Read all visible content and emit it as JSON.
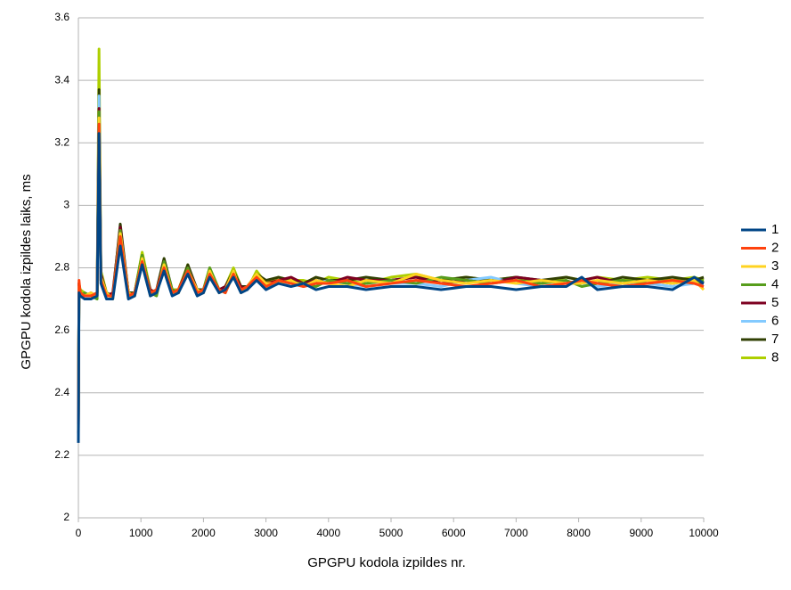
{
  "chart_data": {
    "type": "line",
    "xlabel": "GPGPU kodola izpildes nr.",
    "ylabel": "GPGPU kodola izpildes laiks, ms",
    "x": [
      0,
      10,
      30,
      100,
      200,
      300,
      330,
      360,
      450,
      550,
      670,
      800,
      900,
      1020,
      1150,
      1250,
      1370,
      1500,
      1600,
      1750,
      1900,
      2000,
      2100,
      2250,
      2350,
      2480,
      2600,
      2700,
      2850,
      3000,
      3200,
      3400,
      3600,
      3800,
      4000,
      4300,
      4600,
      5000,
      5400,
      5800,
      6200,
      6600,
      7000,
      7400,
      7800,
      8050,
      8300,
      8700,
      9100,
      9500,
      9850,
      10000
    ],
    "series": [
      {
        "name": "1",
        "color": "#004586",
        "values": [
          2.24,
          2.72,
          2.71,
          2.7,
          2.7,
          2.71,
          3.23,
          2.75,
          2.7,
          2.7,
          2.87,
          2.7,
          2.71,
          2.81,
          2.71,
          2.72,
          2.79,
          2.71,
          2.72,
          2.78,
          2.71,
          2.72,
          2.77,
          2.72,
          2.73,
          2.77,
          2.72,
          2.73,
          2.76,
          2.73,
          2.75,
          2.74,
          2.75,
          2.73,
          2.74,
          2.74,
          2.73,
          2.74,
          2.74,
          2.73,
          2.74,
          2.74,
          2.73,
          2.74,
          2.74,
          2.77,
          2.73,
          2.74,
          2.74,
          2.73,
          2.77,
          2.75
        ]
      },
      {
        "name": "2",
        "color": "#ff420e",
        "values": [
          2.3,
          2.76,
          2.72,
          2.71,
          2.71,
          2.72,
          3.26,
          2.76,
          2.71,
          2.71,
          2.9,
          2.71,
          2.72,
          2.82,
          2.72,
          2.73,
          2.8,
          2.72,
          2.73,
          2.79,
          2.72,
          2.73,
          2.78,
          2.73,
          2.72,
          2.78,
          2.73,
          2.74,
          2.77,
          2.74,
          2.76,
          2.75,
          2.74,
          2.75,
          2.75,
          2.76,
          2.74,
          2.75,
          2.76,
          2.75,
          2.74,
          2.75,
          2.76,
          2.74,
          2.75,
          2.76,
          2.75,
          2.74,
          2.75,
          2.76,
          2.75,
          2.74
        ]
      },
      {
        "name": "3",
        "color": "#ffd320",
        "values": [
          2.28,
          2.74,
          2.72,
          2.71,
          2.72,
          2.71,
          3.28,
          2.77,
          2.72,
          2.7,
          2.91,
          2.72,
          2.71,
          2.83,
          2.71,
          2.72,
          2.81,
          2.72,
          2.72,
          2.79,
          2.73,
          2.72,
          2.79,
          2.72,
          2.73,
          2.79,
          2.72,
          2.74,
          2.78,
          2.75,
          2.75,
          2.76,
          2.74,
          2.76,
          2.75,
          2.74,
          2.76,
          2.75,
          2.78,
          2.76,
          2.75,
          2.76,
          2.75,
          2.76,
          2.75,
          2.75,
          2.76,
          2.75,
          2.76,
          2.75,
          2.76,
          2.73
        ]
      },
      {
        "name": "4",
        "color": "#579d1c",
        "values": [
          2.33,
          2.73,
          2.71,
          2.72,
          2.71,
          2.7,
          3.3,
          2.76,
          2.71,
          2.71,
          2.92,
          2.71,
          2.72,
          2.84,
          2.72,
          2.71,
          2.82,
          2.73,
          2.72,
          2.8,
          2.72,
          2.73,
          2.8,
          2.73,
          2.72,
          2.78,
          2.73,
          2.73,
          2.78,
          2.74,
          2.76,
          2.75,
          2.75,
          2.74,
          2.76,
          2.75,
          2.75,
          2.76,
          2.75,
          2.77,
          2.76,
          2.75,
          2.76,
          2.75,
          2.76,
          2.74,
          2.75,
          2.76,
          2.75,
          2.76,
          2.75,
          2.76
        ]
      },
      {
        "name": "5",
        "color": "#7e0021",
        "values": [
          2.27,
          2.75,
          2.72,
          2.71,
          2.72,
          2.71,
          3.31,
          2.78,
          2.71,
          2.72,
          2.93,
          2.72,
          2.71,
          2.83,
          2.73,
          2.72,
          2.82,
          2.72,
          2.73,
          2.8,
          2.73,
          2.72,
          2.79,
          2.73,
          2.74,
          2.78,
          2.74,
          2.73,
          2.78,
          2.75,
          2.76,
          2.77,
          2.75,
          2.76,
          2.75,
          2.77,
          2.76,
          2.76,
          2.77,
          2.75,
          2.76,
          2.75,
          2.77,
          2.76,
          2.75,
          2.76,
          2.77,
          2.75,
          2.76,
          2.75,
          2.76,
          2.75
        ]
      },
      {
        "name": "6",
        "color": "#83caff",
        "values": [
          2.26,
          2.74,
          2.71,
          2.71,
          2.7,
          2.71,
          3.35,
          2.77,
          2.71,
          2.71,
          2.91,
          2.71,
          2.72,
          2.82,
          2.72,
          2.72,
          2.81,
          2.72,
          2.72,
          2.79,
          2.72,
          2.73,
          2.78,
          2.73,
          2.73,
          2.78,
          2.73,
          2.74,
          2.77,
          2.74,
          2.75,
          2.75,
          2.74,
          2.75,
          2.76,
          2.75,
          2.74,
          2.75,
          2.75,
          2.74,
          2.76,
          2.77,
          2.75,
          2.74,
          2.75,
          2.75,
          2.74,
          2.75,
          2.75,
          2.74,
          2.75,
          2.75
        ]
      },
      {
        "name": "7",
        "color": "#314004",
        "values": [
          2.29,
          2.75,
          2.72,
          2.71,
          2.71,
          2.72,
          3.37,
          2.78,
          2.72,
          2.71,
          2.94,
          2.72,
          2.72,
          2.84,
          2.72,
          2.73,
          2.83,
          2.73,
          2.72,
          2.81,
          2.73,
          2.73,
          2.79,
          2.73,
          2.74,
          2.79,
          2.74,
          2.74,
          2.78,
          2.76,
          2.77,
          2.76,
          2.75,
          2.77,
          2.76,
          2.76,
          2.77,
          2.76,
          2.77,
          2.76,
          2.77,
          2.76,
          2.77,
          2.76,
          2.77,
          2.76,
          2.75,
          2.77,
          2.76,
          2.77,
          2.76,
          2.77
        ]
      },
      {
        "name": "8",
        "color": "#aecf00",
        "values": [
          2.31,
          2.75,
          2.73,
          2.72,
          2.71,
          2.72,
          3.5,
          2.79,
          2.72,
          2.71,
          2.92,
          2.72,
          2.72,
          2.85,
          2.73,
          2.72,
          2.82,
          2.73,
          2.73,
          2.81,
          2.72,
          2.73,
          2.8,
          2.73,
          2.74,
          2.8,
          2.74,
          2.73,
          2.79,
          2.75,
          2.77,
          2.76,
          2.76,
          2.75,
          2.77,
          2.76,
          2.75,
          2.77,
          2.78,
          2.76,
          2.77,
          2.76,
          2.77,
          2.75,
          2.77,
          2.76,
          2.77,
          2.76,
          2.77,
          2.76,
          2.77,
          2.76
        ]
      }
    ],
    "xlim": [
      0,
      10000
    ],
    "xticks": [
      0,
      1000,
      2000,
      3000,
      4000,
      5000,
      6000,
      7000,
      8000,
      9000,
      10000
    ],
    "ylim": [
      2,
      3.6
    ],
    "yticks": [
      2,
      2.2,
      2.4,
      2.6,
      2.8,
      3,
      3.2,
      3.4,
      3.6
    ],
    "grid": true,
    "legend": "right"
  }
}
